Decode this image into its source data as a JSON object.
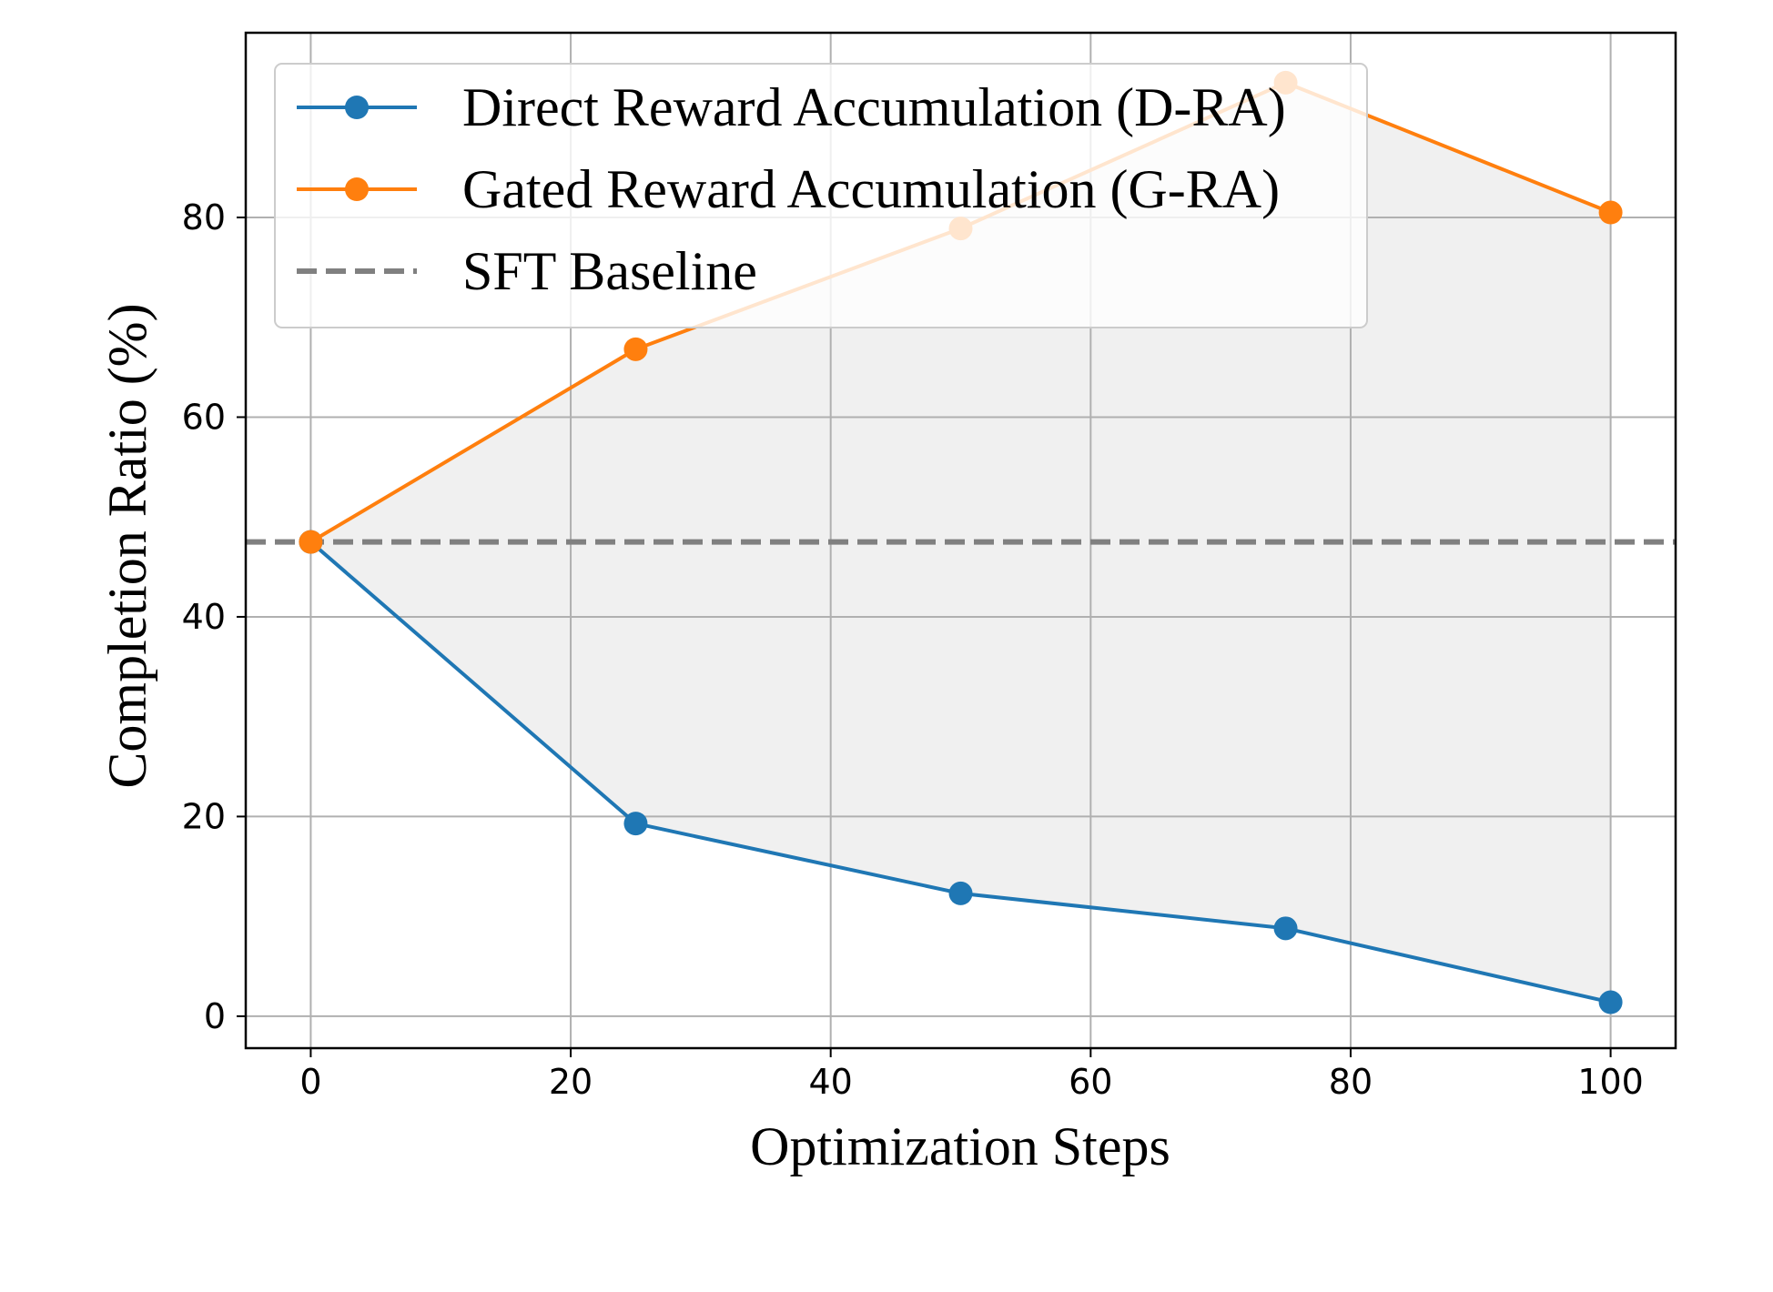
{
  "chart_data": {
    "type": "line",
    "xlabel": "Optimization Steps",
    "ylabel": "Completion Ratio (%)",
    "xlim": [
      -5,
      105
    ],
    "ylim": [
      -3.2,
      98.5
    ],
    "x_ticks": [
      0,
      20,
      40,
      60,
      80,
      100
    ],
    "y_ticks": [
      0,
      20,
      40,
      60,
      80
    ],
    "grid": true,
    "legend_position": "top-left",
    "x": [
      0,
      25,
      50,
      75,
      100
    ],
    "series": [
      {
        "name": "Direct Reward Accumulation (D-RA)",
        "color": "#1f77b4",
        "marker": "circle",
        "values": [
          47.5,
          19.3,
          12.3,
          8.8,
          1.4
        ]
      },
      {
        "name": "Gated Reward Accumulation (G-RA)",
        "color": "#ff7f0e",
        "marker": "circle",
        "values": [
          47.5,
          66.8,
          78.9,
          93.5,
          80.5
        ]
      }
    ],
    "baseline": {
      "name": "SFT Baseline",
      "value": 47.5,
      "color": "#808080",
      "style": "dashed"
    },
    "shaded_region": {
      "between": [
        "Direct Reward Accumulation (D-RA)",
        "Gated Reward Accumulation (G-RA)"
      ],
      "color": "#f0f0f0"
    }
  }
}
